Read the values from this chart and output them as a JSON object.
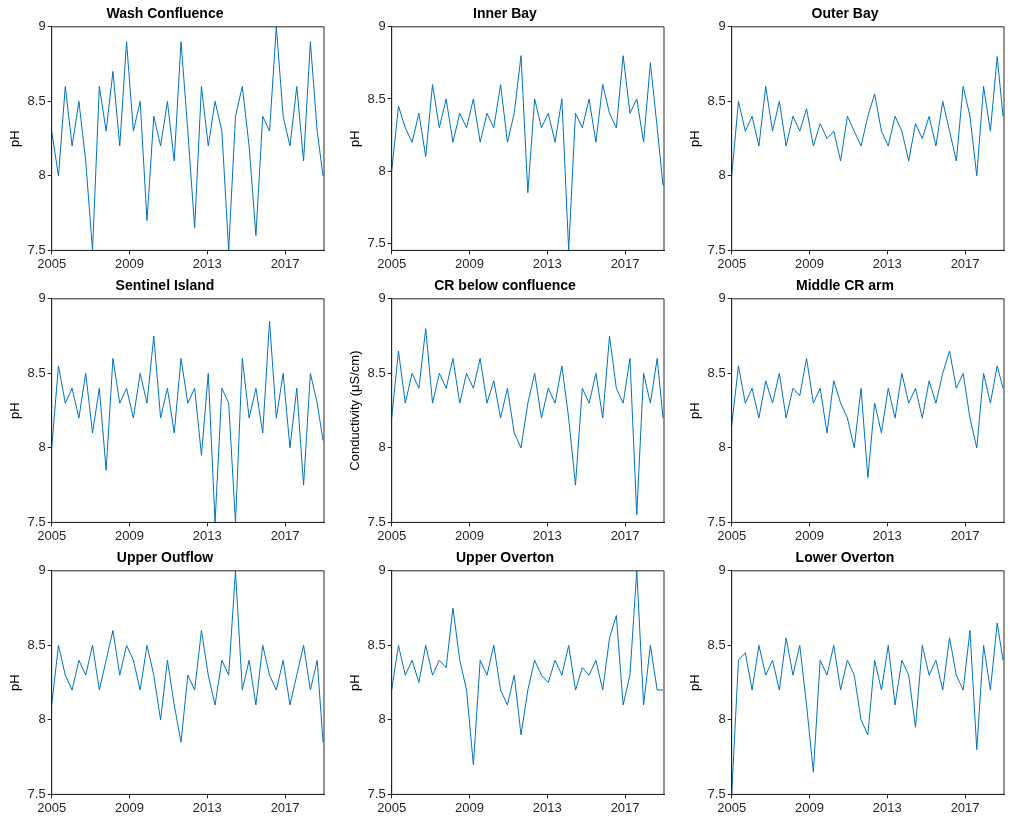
{
  "chart_data": [
    {
      "type": "line",
      "title": "Wash Confluence",
      "ylabel": "pH",
      "marker": "none",
      "xlim": [
        2005,
        2019
      ],
      "xticks": [
        2005,
        2009,
        2013,
        2017
      ],
      "ylim": [
        7.5,
        9
      ],
      "yticks": [
        7.5,
        8,
        8.5,
        9
      ],
      "x": [
        2005,
        2005.35,
        2005.7,
        2006.05,
        2006.4,
        2006.75,
        2007.1,
        2007.45,
        2007.8,
        2008.15,
        2008.5,
        2008.85,
        2009.2,
        2009.55,
        2009.9,
        2010.25,
        2010.6,
        2010.95,
        2011.3,
        2011.65,
        2012,
        2012.35,
        2012.7,
        2013.05,
        2013.4,
        2013.75,
        2014.1,
        2014.45,
        2014.8,
        2015.15,
        2015.5,
        2015.85,
        2016.2,
        2016.55,
        2016.9,
        2017.25,
        2017.6,
        2017.95,
        2018.3,
        2018.65,
        2018.95
      ],
      "series": [
        {
          "color": "#0072bd",
          "values": [
            8.3,
            8.0,
            8.6,
            8.2,
            8.5,
            8.1,
            7.5,
            8.6,
            8.3,
            8.7,
            8.2,
            8.9,
            8.3,
            8.5,
            7.7,
            8.4,
            8.2,
            8.5,
            8.1,
            8.9,
            8.3,
            7.65,
            8.6,
            8.2,
            8.5,
            8.3,
            7.5,
            8.4,
            8.6,
            8.2,
            7.6,
            8.4,
            8.3,
            9.0,
            8.4,
            8.2,
            8.6,
            8.1,
            8.9,
            8.3,
            8.0
          ]
        }
      ]
    },
    {
      "type": "line",
      "title": "Inner Bay",
      "ylabel": "pH",
      "marker": "none",
      "xlim": [
        2005,
        2019
      ],
      "xticks": [
        2005,
        2009,
        2013,
        2017
      ],
      "ylim": [
        7.45,
        9
      ],
      "yticks": [
        7.5,
        8,
        8.5,
        9
      ],
      "x": [
        2005,
        2005.35,
        2005.7,
        2006.05,
        2006.4,
        2006.75,
        2007.1,
        2007.45,
        2007.8,
        2008.15,
        2008.5,
        2008.85,
        2009.2,
        2009.55,
        2009.9,
        2010.25,
        2010.6,
        2010.95,
        2011.3,
        2011.65,
        2012,
        2012.35,
        2012.7,
        2013.05,
        2013.4,
        2013.75,
        2014.1,
        2014.45,
        2014.8,
        2015.15,
        2015.5,
        2015.85,
        2016.2,
        2016.55,
        2016.9,
        2017.25,
        2017.6,
        2017.95,
        2018.3,
        2018.65,
        2018.95
      ],
      "series": [
        {
          "color": "#0072bd",
          "values": [
            8.0,
            8.45,
            8.3,
            8.2,
            8.4,
            8.1,
            8.6,
            8.3,
            8.5,
            8.2,
            8.4,
            8.3,
            8.5,
            8.2,
            8.4,
            8.3,
            8.6,
            8.2,
            8.4,
            8.8,
            7.85,
            8.5,
            8.3,
            8.4,
            8.2,
            8.5,
            7.45,
            8.4,
            8.3,
            8.5,
            8.2,
            8.6,
            8.4,
            8.3,
            8.8,
            8.4,
            8.5,
            8.2,
            8.75,
            8.3,
            7.9
          ]
        }
      ]
    },
    {
      "type": "line",
      "title": "Outer Bay",
      "ylabel": "pH",
      "marker": "none",
      "xlim": [
        2005,
        2019
      ],
      "xticks": [
        2005,
        2009,
        2013,
        2017
      ],
      "ylim": [
        7.5,
        9
      ],
      "yticks": [
        7.5,
        8,
        8.5,
        9
      ],
      "x": [
        2005,
        2005.35,
        2005.7,
        2006.05,
        2006.4,
        2006.75,
        2007.1,
        2007.45,
        2007.8,
        2008.15,
        2008.5,
        2008.85,
        2009.2,
        2009.55,
        2009.9,
        2010.25,
        2010.6,
        2010.95,
        2011.3,
        2011.65,
        2012,
        2012.35,
        2012.7,
        2013.05,
        2013.4,
        2013.75,
        2014.1,
        2014.45,
        2014.8,
        2015.15,
        2015.5,
        2015.85,
        2016.2,
        2016.55,
        2016.9,
        2017.25,
        2017.6,
        2017.95,
        2018.3,
        2018.65,
        2018.95
      ],
      "series": [
        {
          "color": "#0072bd",
          "values": [
            8.0,
            8.5,
            8.3,
            8.4,
            8.2,
            8.6,
            8.3,
            8.5,
            8.2,
            8.4,
            8.3,
            8.45,
            8.2,
            8.35,
            8.25,
            8.3,
            8.1,
            8.4,
            8.3,
            8.2,
            8.4,
            8.55,
            8.3,
            8.2,
            8.4,
            8.3,
            8.1,
            8.35,
            8.25,
            8.4,
            8.2,
            8.5,
            8.3,
            8.1,
            8.6,
            8.4,
            8.0,
            8.6,
            8.3,
            8.8,
            8.4
          ]
        }
      ]
    },
    {
      "type": "line",
      "title": "Sentinel Island",
      "ylabel": "pH",
      "marker": "none",
      "xlim": [
        2005,
        2019
      ],
      "xticks": [
        2005,
        2009,
        2013,
        2017
      ],
      "ylim": [
        7.5,
        9
      ],
      "yticks": [
        7.5,
        8,
        8.5,
        9
      ],
      "x": [
        2005,
        2005.35,
        2005.7,
        2006.05,
        2006.4,
        2006.75,
        2007.1,
        2007.45,
        2007.8,
        2008.15,
        2008.5,
        2008.85,
        2009.2,
        2009.55,
        2009.9,
        2010.25,
        2010.6,
        2010.95,
        2011.3,
        2011.65,
        2012,
        2012.35,
        2012.7,
        2013.05,
        2013.4,
        2013.75,
        2014.1,
        2014.45,
        2014.8,
        2015.15,
        2015.5,
        2015.85,
        2016.2,
        2016.55,
        2016.9,
        2017.25,
        2017.6,
        2017.95,
        2018.3,
        2018.65,
        2018.95
      ],
      "series": [
        {
          "color": "#0072bd",
          "values": [
            8.0,
            8.55,
            8.3,
            8.4,
            8.2,
            8.5,
            8.1,
            8.4,
            7.85,
            8.6,
            8.3,
            8.4,
            8.2,
            8.5,
            8.3,
            8.75,
            8.2,
            8.4,
            8.1,
            8.6,
            8.3,
            8.4,
            7.95,
            8.5,
            7.5,
            8.4,
            8.3,
            7.5,
            8.6,
            8.2,
            8.4,
            8.1,
            8.85,
            8.2,
            8.5,
            8.0,
            8.4,
            7.75,
            8.5,
            8.3,
            8.05
          ]
        }
      ]
    },
    {
      "type": "line",
      "title": "CR below confluence",
      "ylabel": "Conductivity (μS/cm)",
      "marker": "none",
      "xlim": [
        2005,
        2019
      ],
      "xticks": [
        2005,
        2009,
        2013,
        2017
      ],
      "ylim": [
        7.5,
        9
      ],
      "yticks": [
        7.5,
        8,
        8.5,
        9
      ],
      "x": [
        2005,
        2005.35,
        2005.7,
        2006.05,
        2006.4,
        2006.75,
        2007.1,
        2007.45,
        2007.8,
        2008.15,
        2008.5,
        2008.85,
        2009.2,
        2009.55,
        2009.9,
        2010.25,
        2010.6,
        2010.95,
        2011.3,
        2011.65,
        2012,
        2012.35,
        2012.7,
        2013.05,
        2013.4,
        2013.75,
        2014.1,
        2014.45,
        2014.8,
        2015.15,
        2015.5,
        2015.85,
        2016.2,
        2016.55,
        2016.9,
        2017.25,
        2017.6,
        2017.95,
        2018.3,
        2018.65,
        2018.95
      ],
      "series": [
        {
          "color": "#0072bd",
          "values": [
            8.2,
            8.65,
            8.3,
            8.5,
            8.4,
            8.8,
            8.3,
            8.5,
            8.4,
            8.6,
            8.3,
            8.5,
            8.4,
            8.6,
            8.3,
            8.45,
            8.2,
            8.4,
            8.1,
            8.0,
            8.3,
            8.5,
            8.2,
            8.4,
            8.3,
            8.55,
            8.2,
            7.75,
            8.4,
            8.3,
            8.5,
            8.2,
            8.75,
            8.4,
            8.3,
            8.6,
            7.55,
            8.5,
            8.3,
            8.6,
            8.2
          ]
        }
      ]
    },
    {
      "type": "line",
      "title": "Middle CR arm",
      "ylabel": "pH",
      "marker": "none",
      "xlim": [
        2005,
        2019
      ],
      "xticks": [
        2005,
        2009,
        2013,
        2017
      ],
      "ylim": [
        7.5,
        9
      ],
      "yticks": [
        7.5,
        8,
        8.5,
        9
      ],
      "x": [
        2005,
        2005.35,
        2005.7,
        2006.05,
        2006.4,
        2006.75,
        2007.1,
        2007.45,
        2007.8,
        2008.15,
        2008.5,
        2008.85,
        2009.2,
        2009.55,
        2009.9,
        2010.25,
        2010.6,
        2010.95,
        2011.3,
        2011.65,
        2012,
        2012.35,
        2012.7,
        2013.05,
        2013.4,
        2013.75,
        2014.1,
        2014.45,
        2014.8,
        2015.15,
        2015.5,
        2015.85,
        2016.2,
        2016.55,
        2016.9,
        2017.25,
        2017.6,
        2017.95,
        2018.3,
        2018.65,
        2018.95
      ],
      "series": [
        {
          "color": "#0072bd",
          "values": [
            8.15,
            8.55,
            8.3,
            8.4,
            8.2,
            8.45,
            8.3,
            8.5,
            8.2,
            8.4,
            8.35,
            8.6,
            8.3,
            8.4,
            8.1,
            8.45,
            8.3,
            8.2,
            8.0,
            8.4,
            7.8,
            8.3,
            8.1,
            8.4,
            8.2,
            8.5,
            8.3,
            8.4,
            8.2,
            8.45,
            8.3,
            8.5,
            8.65,
            8.4,
            8.5,
            8.2,
            8.0,
            8.5,
            8.3,
            8.55,
            8.4
          ]
        }
      ]
    },
    {
      "type": "line",
      "title": "Upper Outflow",
      "ylabel": "pH",
      "marker": "none",
      "xlim": [
        2005,
        2019
      ],
      "xticks": [
        2005,
        2009,
        2013,
        2017
      ],
      "ylim": [
        7.5,
        9
      ],
      "yticks": [
        7.5,
        8,
        8.5,
        9
      ],
      "x": [
        2005,
        2005.35,
        2005.7,
        2006.05,
        2006.4,
        2006.75,
        2007.1,
        2007.45,
        2007.8,
        2008.15,
        2008.5,
        2008.85,
        2009.2,
        2009.55,
        2009.9,
        2010.25,
        2010.6,
        2010.95,
        2011.3,
        2011.65,
        2012,
        2012.35,
        2012.7,
        2013.05,
        2013.4,
        2013.75,
        2014.1,
        2014.45,
        2014.8,
        2015.15,
        2015.5,
        2015.85,
        2016.2,
        2016.55,
        2016.9,
        2017.25,
        2017.6,
        2017.95,
        2018.3,
        2018.65,
        2018.95
      ],
      "series": [
        {
          "color": "#0072bd",
          "values": [
            8.1,
            8.5,
            8.3,
            8.2,
            8.4,
            8.3,
            8.5,
            8.2,
            8.4,
            8.6,
            8.3,
            8.5,
            8.4,
            8.2,
            8.5,
            8.3,
            8.0,
            8.4,
            8.1,
            7.85,
            8.3,
            8.2,
            8.6,
            8.3,
            8.1,
            8.4,
            8.3,
            9.0,
            8.2,
            8.4,
            8.1,
            8.5,
            8.3,
            8.2,
            8.4,
            8.1,
            8.3,
            8.5,
            8.2,
            8.4,
            7.85
          ]
        }
      ]
    },
    {
      "type": "line",
      "title": "Upper Overton",
      "ylabel": "pH",
      "marker": "none",
      "xlim": [
        2005,
        2019
      ],
      "xticks": [
        2005,
        2009,
        2013,
        2017
      ],
      "ylim": [
        7.5,
        9
      ],
      "yticks": [
        7.5,
        8,
        8.5,
        9
      ],
      "x": [
        2005,
        2005.35,
        2005.7,
        2006.05,
        2006.4,
        2006.75,
        2007.1,
        2007.45,
        2007.8,
        2008.15,
        2008.5,
        2008.85,
        2009.2,
        2009.55,
        2009.9,
        2010.25,
        2010.6,
        2010.95,
        2011.3,
        2011.65,
        2012,
        2012.35,
        2012.7,
        2013.05,
        2013.4,
        2013.75,
        2014.1,
        2014.45,
        2014.8,
        2015.15,
        2015.5,
        2015.85,
        2016.2,
        2016.55,
        2016.9,
        2017.25,
        2017.6,
        2017.95,
        2018.3,
        2018.65,
        2018.95
      ],
      "series": [
        {
          "color": "#0072bd",
          "values": [
            8.2,
            8.5,
            8.3,
            8.4,
            8.25,
            8.5,
            8.3,
            8.4,
            8.35,
            8.75,
            8.4,
            8.2,
            7.7,
            8.4,
            8.3,
            8.5,
            8.2,
            8.1,
            8.3,
            7.9,
            8.2,
            8.4,
            8.3,
            8.25,
            8.4,
            8.3,
            8.5,
            8.2,
            8.35,
            8.3,
            8.4,
            8.2,
            8.55,
            8.7,
            8.1,
            8.3,
            9.0,
            8.1,
            8.5,
            8.2,
            8.2
          ]
        }
      ]
    },
    {
      "type": "line",
      "title": "Lower Overton",
      "ylabel": "pH",
      "marker": "none",
      "xlim": [
        2005,
        2019
      ],
      "xticks": [
        2005,
        2009,
        2013,
        2017
      ],
      "ylim": [
        7.5,
        9
      ],
      "yticks": [
        7.5,
        8,
        8.5,
        9
      ],
      "x": [
        2005,
        2005.35,
        2005.7,
        2006.05,
        2006.4,
        2006.75,
        2007.1,
        2007.45,
        2007.8,
        2008.15,
        2008.5,
        2008.85,
        2009.2,
        2009.55,
        2009.9,
        2010.25,
        2010.6,
        2010.95,
        2011.3,
        2011.65,
        2012,
        2012.35,
        2012.7,
        2013.05,
        2013.4,
        2013.75,
        2014.1,
        2014.45,
        2014.8,
        2015.15,
        2015.5,
        2015.85,
        2016.2,
        2016.55,
        2016.9,
        2017.25,
        2017.6,
        2017.95,
        2018.3,
        2018.65,
        2018.95
      ],
      "series": [
        {
          "color": "#0072bd",
          "values": [
            7.5,
            8.4,
            8.45,
            8.2,
            8.5,
            8.3,
            8.4,
            8.2,
            8.55,
            8.3,
            8.5,
            8.1,
            7.65,
            8.4,
            8.3,
            8.5,
            8.2,
            8.4,
            8.3,
            8.0,
            7.9,
            8.4,
            8.2,
            8.5,
            8.1,
            8.4,
            8.3,
            7.95,
            8.5,
            8.3,
            8.4,
            8.2,
            8.55,
            8.3,
            8.2,
            8.6,
            7.8,
            8.5,
            8.2,
            8.65,
            8.4
          ]
        }
      ]
    }
  ]
}
